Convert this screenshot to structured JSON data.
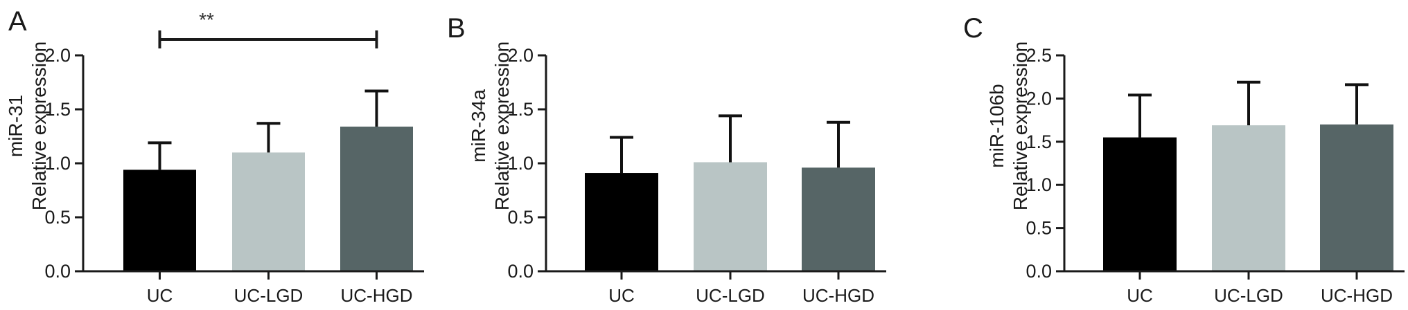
{
  "colors": {
    "UC": "#000000",
    "UC-LGD": "#b9c5c5",
    "UC-HGD": "#566566"
  },
  "chart_data": [
    {
      "type": "bar",
      "panel_label": "A",
      "ylabel_line1": "miR-31",
      "ylabel_line2": "Relative expression",
      "categories": [
        "UC",
        "UC-LGD",
        "UC-HGD"
      ],
      "values": [
        0.94,
        1.1,
        1.34
      ],
      "error_upper": [
        1.19,
        1.37,
        1.67
      ],
      "ylim": [
        0,
        2.0
      ],
      "yticks": [
        0.0,
        0.5,
        1.0,
        1.5,
        2.0
      ],
      "ytick_labels": [
        "0.0",
        "0.5",
        "1.0",
        "1.5",
        "2.0"
      ],
      "significance": {
        "from": "UC",
        "to": "UC-HGD",
        "label": "**"
      }
    },
    {
      "type": "bar",
      "panel_label": "B",
      "ylabel_line1": "miR-34a",
      "ylabel_line2": "Relative expression",
      "categories": [
        "UC",
        "UC-LGD",
        "UC-HGD"
      ],
      "values": [
        0.91,
        1.01,
        0.96
      ],
      "error_upper": [
        1.24,
        1.44,
        1.38
      ],
      "ylim": [
        0,
        2.0
      ],
      "yticks": [
        0.0,
        0.5,
        1.0,
        1.5,
        2.0
      ],
      "ytick_labels": [
        "0.0",
        "0.5",
        "1.0",
        "1.5",
        "2.0"
      ]
    },
    {
      "type": "bar",
      "panel_label": "C",
      "ylabel_line1": "miR-106b",
      "ylabel_line2": "Relative expression",
      "categories": [
        "UC",
        "UC-LGD",
        "UC-HGD"
      ],
      "values": [
        1.55,
        1.69,
        1.7
      ],
      "error_upper": [
        2.04,
        2.19,
        2.16
      ],
      "ylim": [
        0,
        2.5
      ],
      "yticks": [
        0.0,
        0.5,
        1.0,
        1.5,
        2.0,
        2.5
      ],
      "ytick_labels": [
        "0.0",
        "0.5",
        "1.0",
        "1.5",
        "2.0",
        "2.5"
      ]
    }
  ]
}
